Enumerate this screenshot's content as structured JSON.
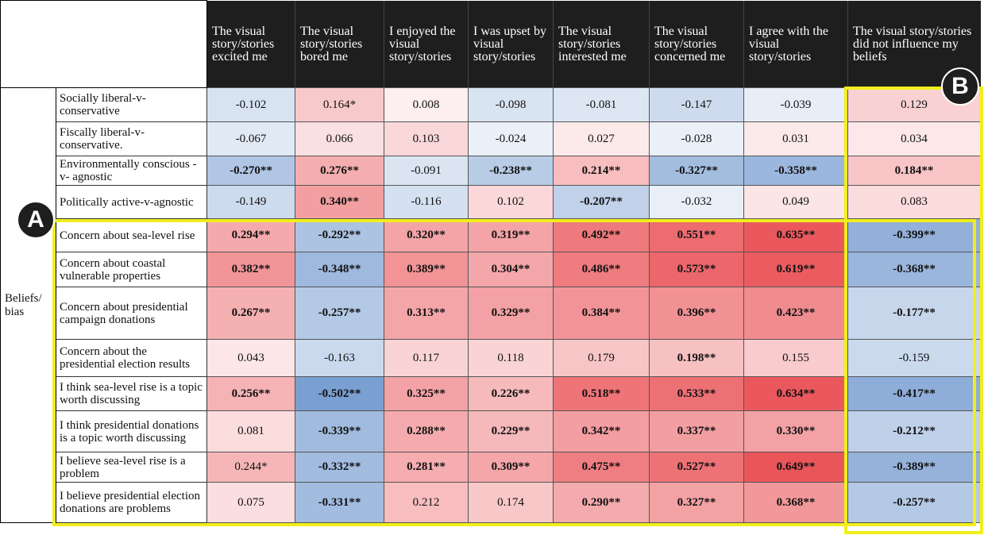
{
  "table": {
    "group_label": "Beliefs/\nbias",
    "headers": [
      "The visual story/stories excited me",
      "The visual story/stories bored me",
      "I enjoyed the visual story/stories",
      "I was upset by visual story/stories",
      "The visual story/stories interested me",
      "The visual story/stories concerned me",
      "I agree with the visual story/stories",
      "The visual story/stories did not influence my beliefs"
    ],
    "rows": [
      {
        "label": "Socially liberal-v-conservative",
        "values": [
          "-0.102",
          "0.164*",
          "0.008",
          "-0.098",
          "-0.081",
          "-0.147",
          "-0.039",
          "0.129"
        ]
      },
      {
        "label": "Fiscally liberal-v-conservative.",
        "values": [
          "-0.067",
          "0.066",
          "0.103",
          "-0.024",
          "0.027",
          "-0.028",
          "0.031",
          "0.034"
        ]
      },
      {
        "label": "Environmentally conscious -v- agnostic",
        "values": [
          "-0.270**",
          "0.276**",
          "-0.091",
          "-0.238**",
          "0.214**",
          "-0.327**",
          "-0.358**",
          "0.184**"
        ]
      },
      {
        "label": "Politically active-v-agnostic",
        "values": [
          "-0.149",
          "0.340**",
          "-0.116",
          "0.102",
          "-0.207**",
          "-0.032",
          "0.049",
          "0.083"
        ]
      },
      {
        "label": "Concern about sea-level rise",
        "values": [
          "0.294**",
          "-0.292**",
          "0.320**",
          "0.319**",
          "0.492**",
          "0.551**",
          "0.635**",
          "-0.399**"
        ]
      },
      {
        "label": "Concern about coastal vulnerable properties",
        "values": [
          "0.382**",
          "-0.348**",
          "0.389**",
          "0.304**",
          "0.486**",
          "0.573**",
          "0.619**",
          "-0.368**"
        ]
      },
      {
        "label": "Concern about presidential campaign donations",
        "values": [
          "0.267**",
          "-0.257**",
          "0.313**",
          "0.329**",
          "0.384**",
          "0.396**",
          "0.423**",
          "-0.177**"
        ]
      },
      {
        "label": "Concern about the presidential election results",
        "values": [
          "0.043",
          "-0.163",
          "0.117",
          "0.118",
          "0.179",
          "0.198**",
          "0.155",
          "-0.159"
        ]
      },
      {
        "label": "I think sea-level rise is a topic worth discussing",
        "values": [
          "0.256**",
          "-0.502**",
          "0.325**",
          "0.226**",
          "0.518**",
          "0.533**",
          "0.634**",
          "-0.417**"
        ]
      },
      {
        "label": "I think presidential donations is a topic worth discussing",
        "values": [
          "0.081",
          "-0.339**",
          "0.288**",
          "0.229**",
          "0.342**",
          "0.337**",
          "0.330**",
          "-0.212**"
        ]
      },
      {
        "label": "I believe sea-level rise is a problem",
        "values": [
          "0.244*",
          "-0.332**",
          "0.281**",
          "0.309**",
          "0.475**",
          "0.527**",
          "0.649**",
          "-0.389**"
        ]
      },
      {
        "label": "I believe presidential election donations are problems",
        "values": [
          "0.075",
          "-0.331**",
          "0.212",
          "0.174",
          "0.290**",
          "0.327**",
          "0.368**",
          "-0.257**"
        ]
      }
    ]
  },
  "annotations": {
    "a_label": "A",
    "b_label": "B",
    "highlight_color": "#f2ee1c"
  },
  "colors": {
    "header_bg": "#1e1e1e",
    "positive": "#e8474c",
    "negative": "#4a7cc0"
  }
}
